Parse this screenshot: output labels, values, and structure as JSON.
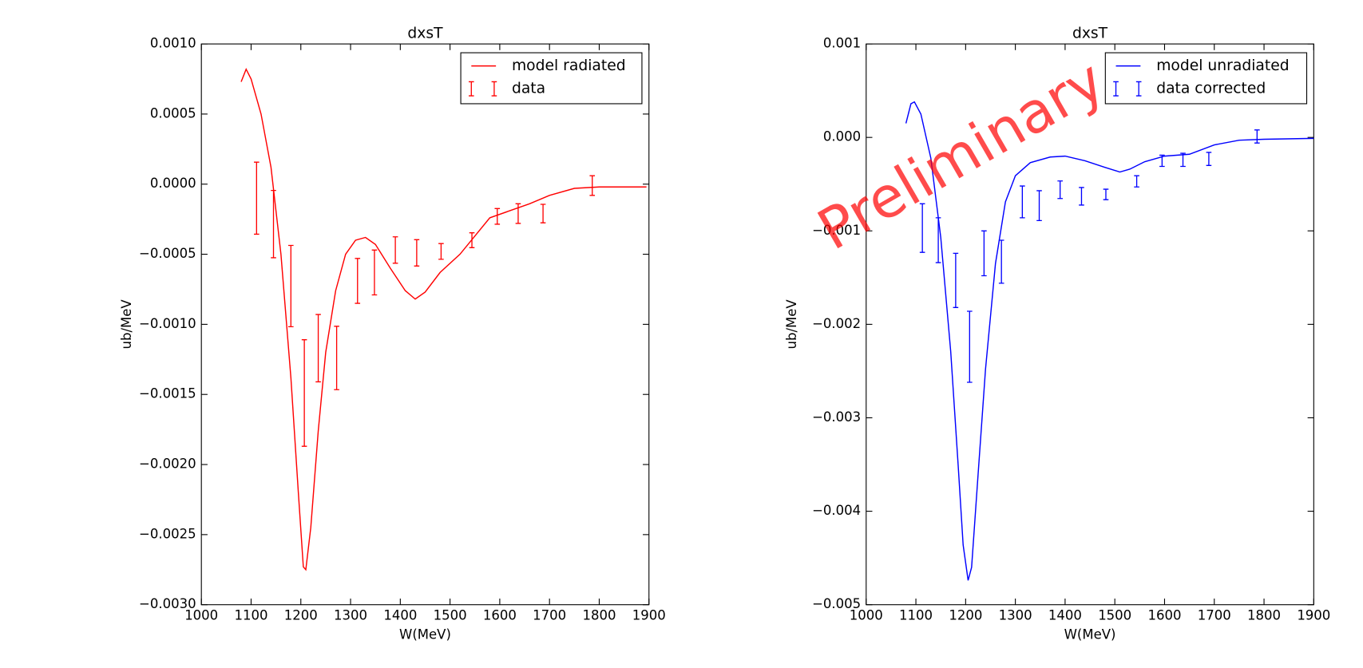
{
  "chart_data": [
    {
      "type": "line",
      "title": "dxsT",
      "xlabel": "W(MeV)",
      "ylabel": "ub/MeV",
      "xlim": [
        1000,
        1900
      ],
      "xticks": [
        1000,
        1100,
        1200,
        1300,
        1400,
        1500,
        1600,
        1700,
        1800,
        1900
      ],
      "ylim": [
        -0.003,
        0.001
      ],
      "yticks": [
        {
          "value": -0.003,
          "label": "−0.0030"
        },
        {
          "value": -0.0025,
          "label": "−0.0025"
        },
        {
          "value": -0.002,
          "label": "−0.0020"
        },
        {
          "value": -0.0015,
          "label": "−0.0015"
        },
        {
          "value": -0.001,
          "label": "−0.0010"
        },
        {
          "value": -0.0005,
          "label": "−0.0005"
        },
        {
          "value": 0,
          "label": "0.0000"
        },
        {
          "value": 0.0005,
          "label": "0.0005"
        },
        {
          "value": 0.001,
          "label": "0.0010"
        }
      ],
      "legend": "upper right",
      "series": [
        {
          "name": "model radiated",
          "color": "#ff0000",
          "type": "line",
          "x": [
            1080,
            1090,
            1100,
            1120,
            1140,
            1160,
            1180,
            1195,
            1205,
            1210,
            1220,
            1235,
            1250,
            1270,
            1290,
            1310,
            1330,
            1350,
            1380,
            1410,
            1430,
            1450,
            1480,
            1520,
            1550,
            1580,
            1620,
            1660,
            1700,
            1750,
            1800,
            1895
          ],
          "values": [
            0.00073,
            0.00082,
            0.00075,
            0.0005,
            0.00012,
            -0.0005,
            -0.00138,
            -0.0022,
            -0.00273,
            -0.00275,
            -0.00245,
            -0.00176,
            -0.0012,
            -0.00076,
            -0.0005,
            -0.0004,
            -0.00038,
            -0.00043,
            -0.0006,
            -0.00076,
            -0.00082,
            -0.00077,
            -0.00063,
            -0.0005,
            -0.00037,
            -0.00024,
            -0.00019,
            -0.00014,
            -8e-05,
            -3e-05,
            -2e-05,
            -2e-05
          ]
        },
        {
          "name": "data",
          "color": "#ff0000",
          "type": "errorbar",
          "x": [
            1111,
            1145,
            1180,
            1207,
            1235,
            1272,
            1314,
            1348,
            1390,
            1433,
            1482,
            1544,
            1595,
            1637,
            1687,
            1786
          ],
          "values": [
            -0.0001,
            -0.000285,
            -0.000727,
            -0.00149,
            -0.00117,
            -0.00124,
            -0.00069,
            -0.00063,
            -0.00047,
            -0.00049,
            -0.00048,
            -0.0004,
            -0.00023,
            -0.00021,
            -0.00021,
            -1e-05
          ],
          "errors": [
            0.000257,
            0.00024,
            0.00029,
            0.00038,
            0.00024,
            0.000226,
            0.00016,
            0.00016,
            9.4e-05,
            9.4e-05,
            5.6e-05,
            5.3e-05,
            5.6e-05,
            7e-05,
            6.6e-05,
            7e-05
          ]
        }
      ]
    },
    {
      "type": "line",
      "title": "dxsT",
      "xlabel": "W(MeV)",
      "ylabel": "ub/MeV",
      "watermark": "Preliminary",
      "xlim": [
        1000,
        1900
      ],
      "xticks": [
        1000,
        1100,
        1200,
        1300,
        1400,
        1500,
        1600,
        1700,
        1800,
        1900
      ],
      "ylim": [
        -0.005,
        0.001
      ],
      "yticks": [
        {
          "value": -0.005,
          "label": "−0.005"
        },
        {
          "value": -0.004,
          "label": "−0.004"
        },
        {
          "value": -0.003,
          "label": "−0.003"
        },
        {
          "value": -0.002,
          "label": "−0.002"
        },
        {
          "value": -0.001,
          "label": "−0.001"
        },
        {
          "value": 0,
          "label": "0.000"
        },
        {
          "value": 0.001,
          "label": "0.001"
        }
      ],
      "legend": "upper right",
      "series": [
        {
          "name": "model unradiated",
          "color": "#0000ff",
          "type": "line",
          "x": [
            1080,
            1090,
            1097,
            1110,
            1130,
            1150,
            1170,
            1185,
            1195,
            1205,
            1212,
            1225,
            1240,
            1260,
            1280,
            1300,
            1330,
            1370,
            1400,
            1440,
            1480,
            1510,
            1530,
            1560,
            1600,
            1650,
            1700,
            1750,
            1800,
            1900
          ],
          "values": [
            0.00015,
            0.00036,
            0.00038,
            0.00025,
            -0.00022,
            -0.00107,
            -0.00229,
            -0.00351,
            -0.00436,
            -0.00474,
            -0.0046,
            -0.00361,
            -0.00248,
            -0.00135,
            -0.00069,
            -0.00041,
            -0.00027,
            -0.00021,
            -0.0002,
            -0.00025,
            -0.00032,
            -0.00037,
            -0.00034,
            -0.00026,
            -0.0002,
            -0.00018,
            -8e-05,
            -3e-05,
            -2e-05,
            -1e-05
          ]
        },
        {
          "name": "data corrected",
          "color": "#0000ff",
          "type": "errorbar",
          "x": [
            1113,
            1145,
            1180,
            1208,
            1237,
            1272,
            1314,
            1348,
            1390,
            1433,
            1482,
            1544,
            1595,
            1637,
            1689,
            1786
          ],
          "values": [
            -0.00097,
            -0.0011,
            -0.00153,
            -0.00224,
            -0.00124,
            -0.00133,
            -0.00069,
            -0.00073,
            -0.00056,
            -0.00063,
            -0.00061,
            -0.00047,
            -0.00025,
            -0.00024,
            -0.00023,
            1e-05
          ],
          "errors": [
            0.00026,
            0.00024,
            0.00029,
            0.00038,
            0.00024,
            0.00023,
            0.00017,
            0.00016,
            9.4e-05,
            9.4e-05,
            5.6e-05,
            6e-05,
            6e-05,
            7e-05,
            7e-05,
            7e-05
          ]
        }
      ]
    }
  ]
}
